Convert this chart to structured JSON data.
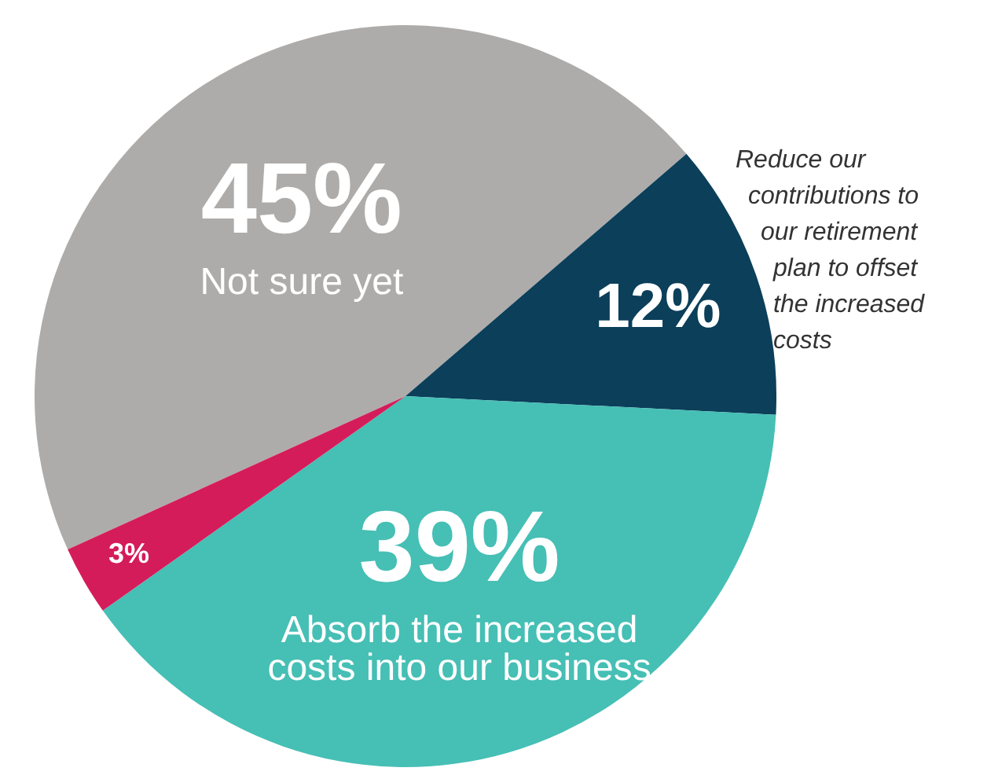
{
  "chart_data": {
    "type": "pie",
    "categories": [
      "Not sure yet",
      "Reduce our contributions to our retirement plan to offset the increased costs",
      "Absorb the increased costs into our business",
      null
    ],
    "values": [
      45,
      12,
      39,
      3
    ],
    "colors": [
      "#aeacaa",
      "#0b3f5a",
      "#46bfb5",
      "#d41c5a"
    ],
    "value_labels": [
      "45%",
      "12%",
      "39%",
      "3%"
    ],
    "legend": false
  }
}
